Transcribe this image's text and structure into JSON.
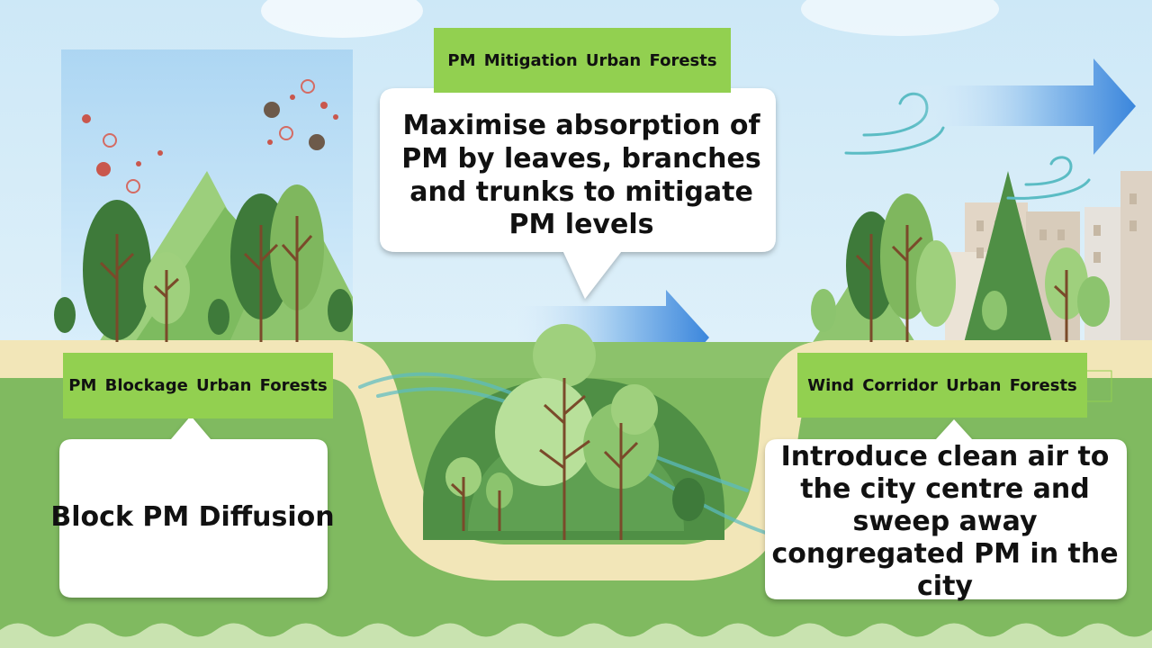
{
  "diagram": {
    "forests": [
      {
        "id": "blockage",
        "label": "PM Blockage Urban Forests",
        "description": "Block PM Diffusion"
      },
      {
        "id": "mitigation",
        "label": "PM Mitigation Urban Forests",
        "description": "Maximise absorption of PM by leaves, branches and trunks to mitigate PM levels"
      },
      {
        "id": "wind",
        "label": "Wind Corridor Urban Forests",
        "description": "Introduce clean air to the city centre and sweep away congregated PM in the city"
      }
    ]
  },
  "colors": {
    "label_green": "#92d050",
    "sky": "#dff0fa",
    "grass": "#8cc26b",
    "path": "#f2e6b8",
    "arrow_blue": "#2f78d6"
  },
  "icons": [
    "pm-particle-icon",
    "tree-icon",
    "wind-arrow-icon",
    "wind-swirl-icon",
    "building-icon",
    "mountain-icon"
  ]
}
